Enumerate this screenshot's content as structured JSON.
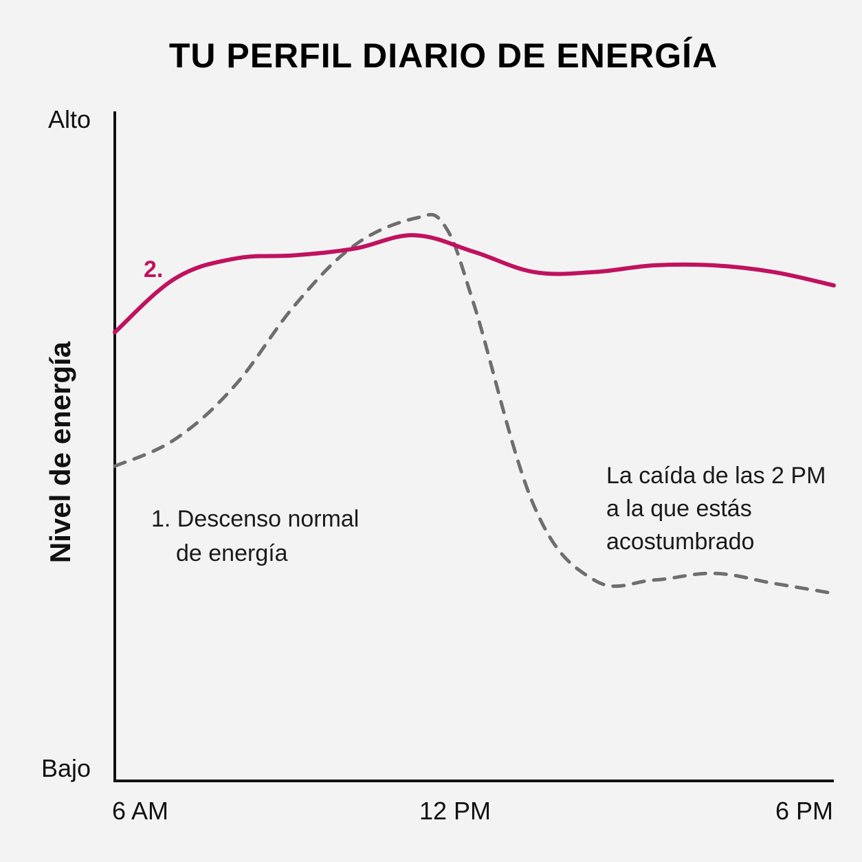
{
  "chart_data": {
    "type": "line",
    "title": "TU PERFIL DIARIO DE ENERGÍA",
    "ylabel": "Nivel de energía",
    "xlabel": "",
    "x_ticks": [
      "6 AM",
      "12 PM",
      "6 PM"
    ],
    "y_ticks": [
      "Bajo",
      "Alto"
    ],
    "x_range_hours": [
      6,
      18
    ],
    "y_range": [
      0,
      100
    ],
    "series": [
      {
        "style": "solid",
        "color": "#c0125e",
        "marker_label": "2.",
        "x": [
          6,
          7,
          8,
          9,
          10,
          11,
          12,
          13,
          14,
          15,
          16,
          17,
          18
        ],
        "y": [
          67,
          75,
          78,
          78.5,
          79.5,
          81.5,
          79,
          76,
          76,
          77,
          77,
          76,
          74
        ]
      },
      {
        "style": "dashed",
        "color": "#6e6e6e",
        "x": [
          6,
          7,
          8,
          9,
          10,
          11,
          11.5,
          12,
          13,
          14,
          15,
          16,
          17,
          18
        ],
        "y": [
          47,
          51,
          59,
          71,
          80,
          84,
          83,
          71,
          41,
          30,
          30,
          31,
          29.5,
          28
        ]
      }
    ],
    "annotations": [
      {
        "lines": [
          "1. Descenso normal",
          "de energía"
        ]
      },
      {
        "lines": [
          "La caída de las 2 PM",
          "a la que estás",
          "acostumbrado"
        ]
      }
    ],
    "grid": false,
    "legend": "none"
  }
}
